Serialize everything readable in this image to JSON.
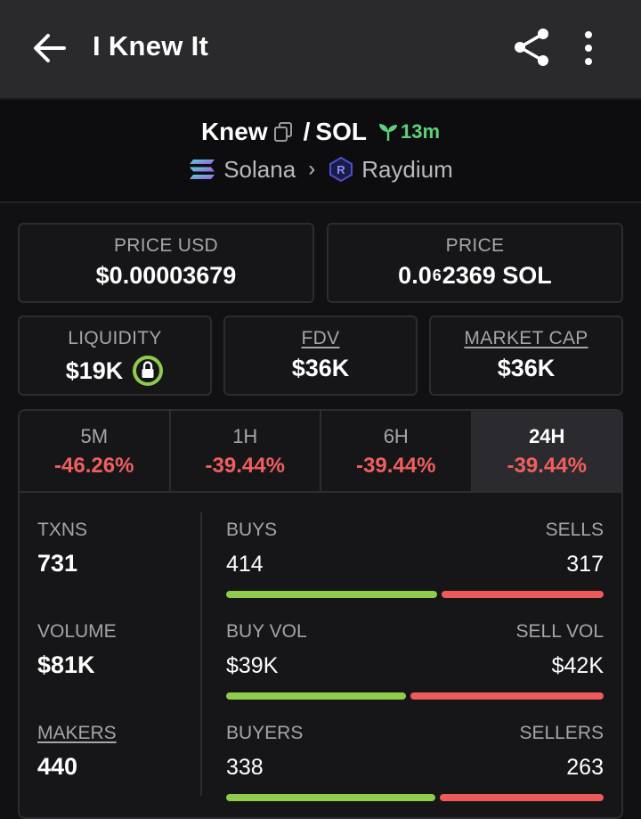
{
  "appbar": {
    "title": "I Knew It",
    "back_icon": "arrow-left-icon",
    "share_icon": "share-icon",
    "more_icon": "more-vertical-icon"
  },
  "pair": {
    "base": "Knew",
    "separator": "/",
    "quote": "SOL",
    "age": "13m",
    "chain": "Solana",
    "dex": "Raydium",
    "age_color": "#5fd07a"
  },
  "cards": {
    "price_usd": {
      "label": "PRICE USD",
      "value": "$0.00003679"
    },
    "price": {
      "label": "PRICE",
      "value_prefix": "0.0",
      "value_zeros": "6",
      "value_suffix": "2369 SOL"
    },
    "liquidity": {
      "label": "LIQUIDITY",
      "value": "$19K"
    },
    "fdv": {
      "label": "FDV",
      "value": "$36K"
    },
    "market_cap": {
      "label": "MARKET CAP",
      "value": "$36K"
    }
  },
  "tabs": [
    {
      "label": "5M",
      "change": "-46.26%"
    },
    {
      "label": "1H",
      "change": "-39.44%"
    },
    {
      "label": "6H",
      "change": "-39.44%"
    },
    {
      "label": "24H",
      "change": "-39.44%",
      "active": true
    }
  ],
  "stats": {
    "txns": {
      "label": "TXNS",
      "value": "731"
    },
    "volume": {
      "label": "VOLUME",
      "value": "$81K"
    },
    "makers": {
      "label": "MAKERS",
      "value": "440"
    },
    "buys": {
      "left_label": "BUYS",
      "left_value": "414",
      "right_label": "SELLS",
      "right_value": "317",
      "fraction": 0.566
    },
    "buy_vol": {
      "left_label": "BUY VOL",
      "left_value": "$39K",
      "right_label": "SELL VOL",
      "right_value": "$42K",
      "fraction": 0.481
    },
    "buyers": {
      "left_label": "BUYERS",
      "left_value": "338",
      "right_label": "SELLERS",
      "right_value": "263",
      "fraction": 0.562
    }
  },
  "colors": {
    "positive": "#8fcc4b",
    "negative": "#ee5a5a",
    "background": "#111114"
  }
}
